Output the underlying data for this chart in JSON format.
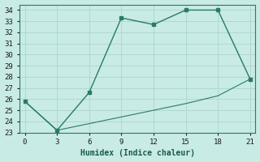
{
  "xlabel": "Humidex (Indice chaleur)",
  "bg_color": "#c8ebe5",
  "grid_color": "#b0d8d0",
  "line_color": "#2a7a6a",
  "upper_x": [
    0,
    3,
    6,
    9,
    12,
    15,
    18,
    21
  ],
  "upper_y": [
    25.8,
    23.2,
    26.6,
    33.3,
    32.7,
    34.0,
    34.0,
    27.8
  ],
  "lower_x": [
    0,
    3,
    6,
    9,
    12,
    15,
    18,
    21
  ],
  "lower_y": [
    25.8,
    23.2,
    23.8,
    24.4,
    25.0,
    25.6,
    26.3,
    27.8
  ],
  "xlim": [
    -0.5,
    21.5
  ],
  "ylim": [
    23,
    34.5
  ],
  "xticks": [
    0,
    3,
    6,
    9,
    12,
    15,
    18,
    21
  ],
  "yticks": [
    23,
    24,
    25,
    26,
    27,
    28,
    29,
    30,
    31,
    32,
    33,
    34
  ]
}
